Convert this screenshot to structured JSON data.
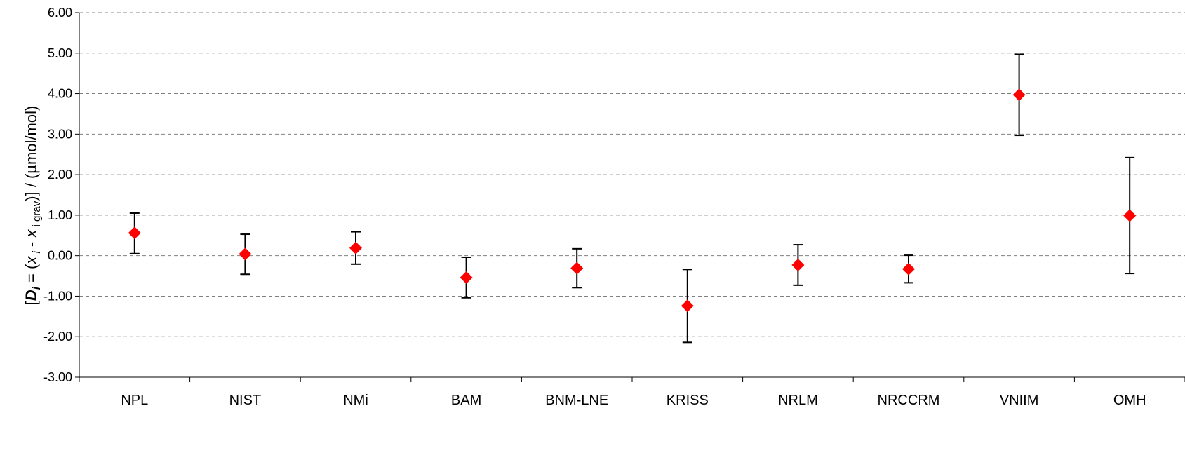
{
  "chart_data": {
    "type": "scatter",
    "title": "",
    "ylabel": {
      "open": "[",
      "d": "D",
      "i": "i",
      "eq": " = (",
      "x1": "x",
      "i1": " i",
      "minus": " - ",
      "x2": "x",
      "igrav": " i grav",
      "close": ")] / (µmol/mol)"
    },
    "ylim": [
      -3,
      6
    ],
    "yticks": [
      -3,
      -2,
      -1,
      0,
      1,
      2,
      3,
      4,
      5,
      6
    ],
    "ytick_labels": [
      "-3.00",
      "-2.00",
      "-1.00",
      "0.00",
      "1.00",
      "2.00",
      "3.00",
      "4.00",
      "5.00",
      "6.00"
    ],
    "grid": "horizontal-dashed",
    "categories": [
      "NPL",
      "NIST",
      "NMi",
      "BAM",
      "BNM-LNE",
      "KRISS",
      "NRLM",
      "NRCCRM",
      "VNIIM",
      "OMH"
    ],
    "series": [
      {
        "values": [
          0.56,
          0.04,
          0.19,
          -0.54,
          -0.31,
          -1.24,
          -0.23,
          -0.33,
          3.97,
          0.99
        ],
        "err_low": [
          0.05,
          -0.46,
          -0.21,
          -1.04,
          -0.79,
          -2.14,
          -0.73,
          -0.67,
          2.97,
          -0.44
        ],
        "err_high": [
          1.05,
          0.53,
          0.59,
          -0.04,
          0.17,
          -0.34,
          0.27,
          0.01,
          4.97,
          2.42
        ],
        "color": "#ff0000",
        "marker": "diamond"
      }
    ],
    "axis_color": "#000000",
    "grid_color": "#808080",
    "errorbar_color": "#000000"
  }
}
